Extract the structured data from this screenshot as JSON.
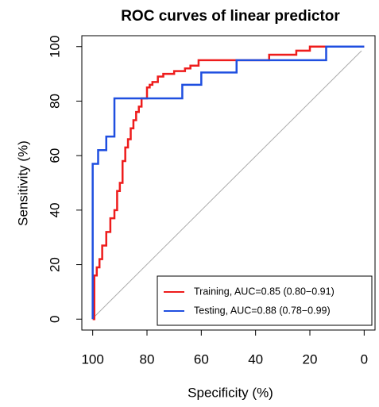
{
  "chart_data": {
    "type": "line",
    "title": "ROC curves of linear predictor",
    "x_label": "Specificity (%)",
    "y_label": "Sensitivity (%)",
    "xlim": [
      104,
      -4
    ],
    "ylim": [
      -4,
      104
    ],
    "xticks": [
      100,
      80,
      60,
      40,
      20,
      0
    ],
    "yticks": [
      0,
      20,
      40,
      60,
      80,
      100
    ],
    "legend": "bottom-right",
    "series": [
      {
        "name": "Training, AUC=0.85 (0.80−0.91)",
        "color": "#ee1c1c",
        "x": [
          100,
          99.4,
          99.4,
          98.5,
          98.5,
          97.5,
          97.5,
          96.5,
          96.5,
          95,
          95,
          93.5,
          93.5,
          92,
          92,
          91,
          91,
          90,
          90,
          89,
          89,
          88,
          88,
          87,
          87,
          86,
          86,
          85,
          85,
          84,
          84,
          83,
          83,
          82,
          82,
          80,
          80,
          79,
          79,
          78,
          78,
          76,
          76,
          74,
          74,
          70,
          70,
          66,
          66,
          64,
          64,
          61,
          61,
          35,
          35,
          25,
          25,
          20,
          20,
          0
        ],
        "values": [
          0,
          0,
          16,
          16,
          19,
          19,
          22,
          22,
          27,
          27,
          32,
          32,
          37,
          37,
          40,
          40,
          47,
          47,
          50,
          50,
          58,
          58,
          63,
          63,
          66,
          66,
          70,
          70,
          73,
          73,
          76,
          76,
          78,
          78,
          81,
          81,
          85,
          85,
          86,
          86,
          87,
          87,
          89,
          89,
          90,
          90,
          91,
          91,
          92,
          92,
          93,
          93,
          95,
          95,
          97,
          97,
          98.5,
          98.5,
          100,
          100
        ]
      },
      {
        "name": "Testing, AUC=0.88 (0.78−0.99)",
        "color": "#1f4fe0",
        "x": [
          100,
          100,
          98,
          98,
          95,
          95,
          92,
          92,
          67,
          67,
          60,
          60,
          47,
          47,
          14,
          14,
          0
        ],
        "values": [
          0,
          57,
          57,
          62,
          62,
          67,
          67,
          81,
          81,
          86,
          86,
          90.5,
          90.5,
          95,
          95,
          100,
          100
        ]
      }
    ]
  }
}
